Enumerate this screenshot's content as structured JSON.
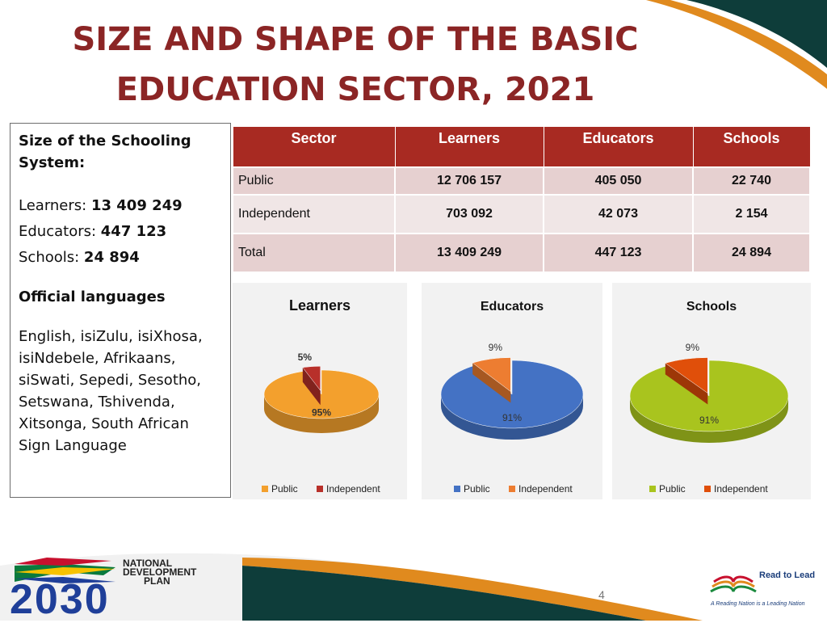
{
  "title": {
    "line1": "SIZE AND SHAPE OF THE BASIC",
    "line2": "EDUCATION SECTOR, 2021"
  },
  "info_box": {
    "heading": "Size of the Schooling System:",
    "learners_label": "Learners: ",
    "learners_value": "13 409 249",
    "educators_label": "Educators: ",
    "educators_value": "447 123",
    "schools_label": "Schools: ",
    "schools_value": "24 894",
    "languages_heading": "Official languages",
    "languages_text": "English, isiZulu, isiXhosa, isiNdebele, Afrikaans, siSwati, Sepedi, Sesotho, Setswana, Tshivenda, Xitsonga, South African Sign Language"
  },
  "table": {
    "headers": [
      "Sector",
      "Learners",
      "Educators",
      "Schools"
    ],
    "rows": [
      [
        "Public",
        "12 706 157",
        "405 050",
        "22 740"
      ],
      [
        "Independent",
        "703 092",
        "42 073",
        "2 154"
      ],
      [
        "Total",
        "13 409 249",
        "447 123",
        "24 894"
      ]
    ]
  },
  "chart_data": [
    {
      "type": "pie",
      "title": "Learners",
      "categories": [
        "Public",
        "Independent"
      ],
      "values": [
        95,
        5
      ],
      "labels": [
        "95%",
        "5%"
      ],
      "colors": [
        "#f3a02d",
        "#b8302a"
      ],
      "legend": "bottom"
    },
    {
      "type": "pie",
      "title": "Educators",
      "categories": [
        "Public",
        "Independent"
      ],
      "values": [
        91,
        9
      ],
      "labels": [
        "91%",
        "9%"
      ],
      "colors": [
        "#4472c4",
        "#ed7d31"
      ],
      "legend": "bottom"
    },
    {
      "type": "pie",
      "title": "Schools",
      "categories": [
        "Public",
        "Independent"
      ],
      "values": [
        91,
        9
      ],
      "labels": [
        "91%",
        "9%"
      ],
      "colors": [
        "#a9c41e",
        "#e04f0a"
      ],
      "legend": "bottom"
    }
  ],
  "footer": {
    "page_number": "4",
    "ndp_line1": "NATIONAL",
    "ndp_line2": "DEVELOPMENT",
    "ndp_line3": "PLAN",
    "ndp_year": "2030",
    "read_to_lead": "Read to Lead",
    "read_tagline": "A Reading Nation is a Leading Nation"
  },
  "colors": {
    "title": "#8b2525",
    "table_header": "#a82a22",
    "deco_green": "#0e3d3a",
    "deco_orange": "#e08a1e"
  }
}
